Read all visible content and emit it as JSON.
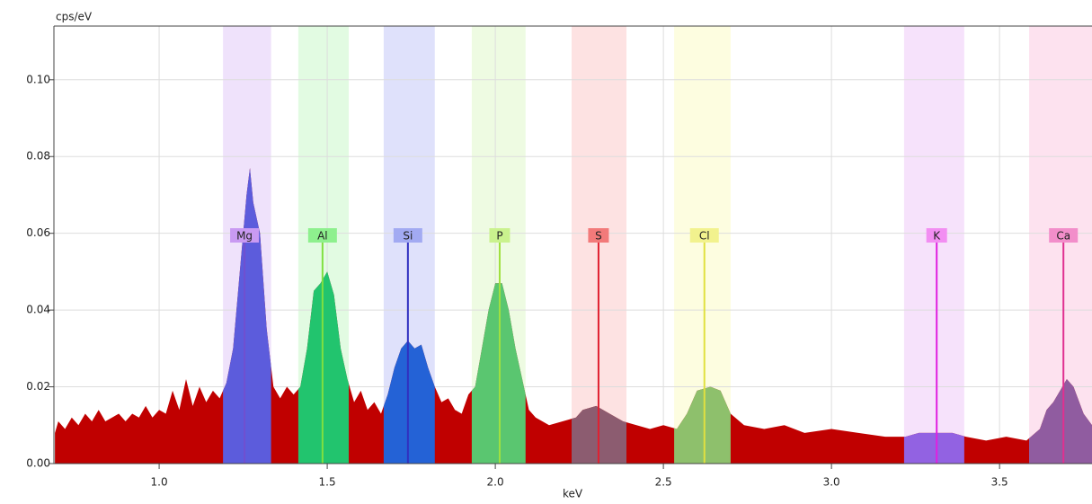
{
  "chart_data": {
    "type": "spectrum",
    "ylabel": "cps/eV",
    "xlabel": "keV",
    "xlim": [
      0.687,
      3.775
    ],
    "ylim": [
      0,
      0.114
    ],
    "xticks": [
      {
        "value": 1,
        "label": "1.0"
      },
      {
        "value": 1.5,
        "label": "1.5"
      },
      {
        "value": 2,
        "label": "2.0"
      },
      {
        "value": 2.5,
        "label": "2.5"
      },
      {
        "value": 3,
        "label": "3.0"
      },
      {
        "value": 3.5,
        "label": "3.5"
      }
    ],
    "yticks": [
      {
        "value": 0,
        "label": "0.00"
      },
      {
        "value": 0.02,
        "label": "0.02"
      },
      {
        "value": 0.04,
        "label": "0.04"
      },
      {
        "value": 0.06,
        "label": "0.06"
      },
      {
        "value": 0.08,
        "label": "0.08"
      },
      {
        "value": 0.1,
        "label": "0.10"
      }
    ],
    "grid": true,
    "color": "#c00000",
    "series": [
      {
        "x": [
          0.69,
          0.7,
          0.72,
          0.74,
          0.76,
          0.78,
          0.8,
          0.82,
          0.84,
          0.86,
          0.88,
          0.9,
          0.92,
          0.94,
          0.96,
          0.98,
          1.0,
          1.02,
          1.04,
          1.06,
          1.08,
          1.1,
          1.12,
          1.14,
          1.16,
          1.18,
          1.2,
          1.22,
          1.24,
          1.26,
          1.27,
          1.28,
          1.3,
          1.32,
          1.34,
          1.36,
          1.38,
          1.4,
          1.42,
          1.44,
          1.46,
          1.48,
          1.5,
          1.52,
          1.54,
          1.56,
          1.58,
          1.6,
          1.62,
          1.64,
          1.66,
          1.68,
          1.7,
          1.72,
          1.74,
          1.76,
          1.78,
          1.8,
          1.82,
          1.84,
          1.86,
          1.88,
          1.9,
          1.92,
          1.94,
          1.96,
          1.98,
          2.0,
          2.02,
          2.04,
          2.06,
          2.08,
          2.1,
          2.12,
          2.16,
          2.2,
          2.24,
          2.26,
          2.3,
          2.34,
          2.38,
          2.42,
          2.46,
          2.5,
          2.54,
          2.57,
          2.6,
          2.64,
          2.67,
          2.7,
          2.74,
          2.8,
          2.86,
          2.92,
          3.0,
          3.08,
          3.16,
          3.22,
          3.26,
          3.3,
          3.36,
          3.4,
          3.46,
          3.52,
          3.58,
          3.62,
          3.64,
          3.66,
          3.68,
          3.7,
          3.72,
          3.75,
          3.775
        ],
        "values": [
          0.008,
          0.011,
          0.009,
          0.012,
          0.01,
          0.013,
          0.011,
          0.014,
          0.011,
          0.012,
          0.013,
          0.011,
          0.013,
          0.012,
          0.015,
          0.012,
          0.014,
          0.013,
          0.019,
          0.014,
          0.022,
          0.015,
          0.02,
          0.016,
          0.019,
          0.017,
          0.021,
          0.03,
          0.05,
          0.07,
          0.077,
          0.068,
          0.06,
          0.035,
          0.02,
          0.017,
          0.02,
          0.018,
          0.02,
          0.03,
          0.045,
          0.047,
          0.05,
          0.044,
          0.03,
          0.022,
          0.016,
          0.019,
          0.014,
          0.016,
          0.013,
          0.018,
          0.025,
          0.03,
          0.032,
          0.03,
          0.031,
          0.025,
          0.02,
          0.016,
          0.017,
          0.014,
          0.013,
          0.018,
          0.02,
          0.03,
          0.04,
          0.047,
          0.047,
          0.04,
          0.03,
          0.022,
          0.014,
          0.012,
          0.01,
          0.011,
          0.012,
          0.014,
          0.015,
          0.013,
          0.011,
          0.01,
          0.009,
          0.01,
          0.009,
          0.013,
          0.019,
          0.02,
          0.019,
          0.013,
          0.01,
          0.009,
          0.01,
          0.008,
          0.009,
          0.008,
          0.007,
          0.007,
          0.008,
          0.008,
          0.008,
          0.007,
          0.006,
          0.007,
          0.006,
          0.009,
          0.014,
          0.016,
          0.019,
          0.022,
          0.02,
          0.013,
          0.01
        ]
      }
    ],
    "elements": [
      {
        "name": "Mg",
        "energy": 1.254,
        "band": [
          1.19,
          1.333
        ],
        "band_color": "#efe2fb",
        "fill": "#5c5cdc",
        "label_color": "#c99af2",
        "line_color": "#7050d0"
      },
      {
        "name": "Al",
        "energy": 1.486,
        "band": [
          1.414,
          1.564
        ],
        "band_color": "#e2fbe2",
        "fill": "#22c46e",
        "label_color": "#8ef08e",
        "line_color": "#80e040"
      },
      {
        "name": "Si",
        "energy": 1.74,
        "band": [
          1.668,
          1.82
        ],
        "band_color": "#dfe1fb",
        "fill": "#2462d6",
        "label_color": "#a2aaf2",
        "line_color": "#3030c0"
      },
      {
        "name": "P",
        "energy": 2.013,
        "band": [
          1.93,
          2.09
        ],
        "band_color": "#eefbe2",
        "fill": "#5ac670",
        "label_color": "#caf28e",
        "line_color": "#a0e040"
      },
      {
        "name": "S",
        "energy": 2.307,
        "band": [
          2.227,
          2.39
        ],
        "band_color": "#fde2e2",
        "fill": "#8c5c70",
        "label_color": "#f27a7a",
        "line_color": "#e02030"
      },
      {
        "name": "Cl",
        "energy": 2.622,
        "band": [
          2.532,
          2.7
        ],
        "band_color": "#fdfde0",
        "fill": "#8ec06c",
        "label_color": "#f2f28e",
        "line_color": "#e0e040"
      },
      {
        "name": "K",
        "energy": 3.313,
        "band": [
          3.216,
          3.395
        ],
        "band_color": "#f6e2fb",
        "fill": "#9262e2",
        "label_color": "#f28ef2",
        "line_color": "#e020e0"
      },
      {
        "name": "Ca",
        "energy": 3.69,
        "band": [
          3.588,
          3.775
        ],
        "band_color": "#fde2ef",
        "fill": "#905ca0",
        "label_color": "#f28eca",
        "line_color": "#e03090"
      }
    ]
  }
}
